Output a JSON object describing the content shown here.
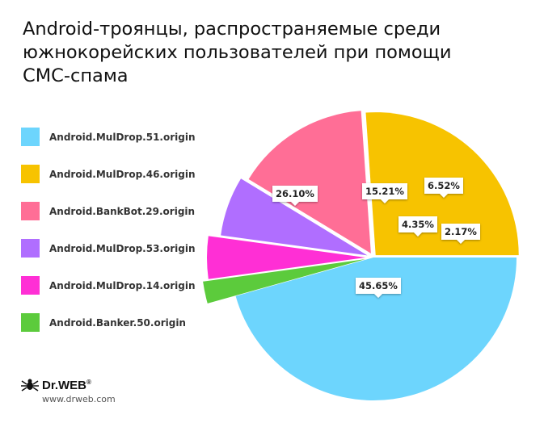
{
  "title": "Android-троянцы, распространяемые среди южнокорейских пользователей при помощи СМС-спама",
  "chart_data": {
    "type": "pie",
    "slices": [
      {
        "label": "Android.MulDrop.51.origin",
        "value": 45.65,
        "value_label": "45.65%",
        "color": "#6dd5fd"
      },
      {
        "label": "Android.MulDrop.46.origin",
        "value": 26.1,
        "value_label": "26.10%",
        "color": "#f7c300"
      },
      {
        "label": "Android.BankBot.29.origin",
        "value": 15.21,
        "value_label": "15.21%",
        "color": "#ff6e96"
      },
      {
        "label": "Android.MulDrop.53.origin",
        "value": 6.52,
        "value_label": "6.52%",
        "color": "#b06eff"
      },
      {
        "label": "Android.MulDrop.14.origin",
        "value": 4.35,
        "value_label": "4.35%",
        "color": "#ff2fd5"
      },
      {
        "label": "Android.Banker.50.origin",
        "value": 2.17,
        "value_label": "2.17%",
        "color": "#5ccb3c"
      }
    ],
    "legend_position": "left"
  },
  "branding": {
    "logo_text": "Dr.WEB",
    "logo_mark": "®",
    "url": "www.drweb.com"
  }
}
